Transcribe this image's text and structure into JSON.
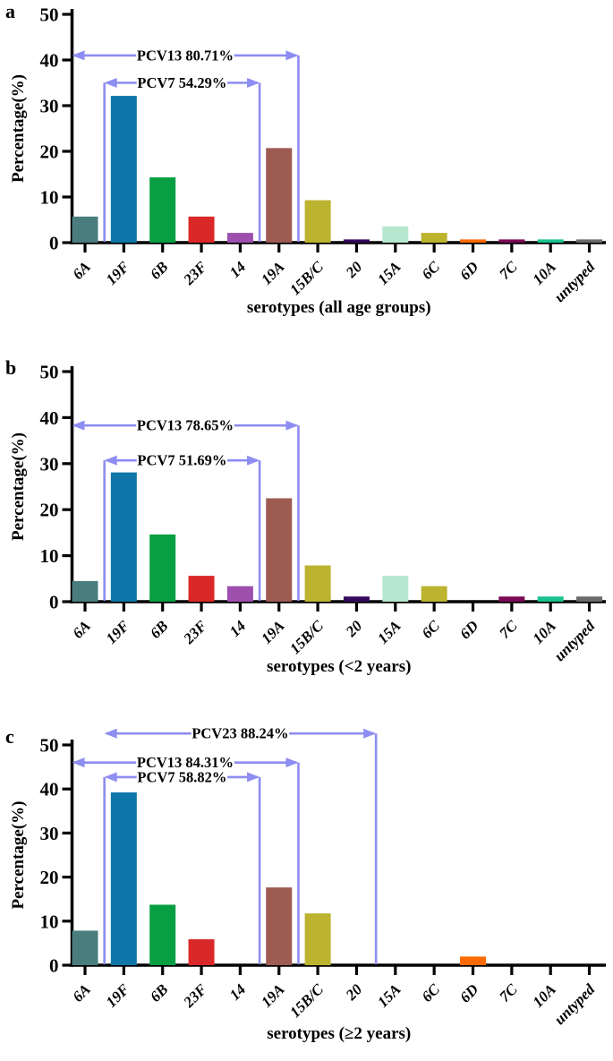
{
  "style": {
    "background": "#ffffff",
    "axis_color": "#000000",
    "text_color": "#000000",
    "arrow_color": "#8d8df2",
    "bar_colors": [
      "#4a7d7d",
      "#0e76a8",
      "#089e42",
      "#da2727",
      "#9d4fae",
      "#9e5b52",
      "#bcb32f",
      "#35095c",
      "#b6e7cf",
      "#bcb32f",
      "#fc6a03",
      "#7b0a55",
      "#19c28e",
      "#6b6b6b"
    ]
  },
  "chart_data": [
    {
      "type": "bar",
      "panel_letter": "a",
      "title": "",
      "xlabel": "serotypes (all age groups)",
      "ylabel": "Percentage(%)",
      "ylim": [
        0,
        50
      ],
      "yticks": [
        0,
        10,
        20,
        30,
        40,
        50
      ],
      "grid": false,
      "legend": "none",
      "categories": [
        "6A",
        "19F",
        "6B",
        "23F",
        "14",
        "19A",
        "15B/C",
        "20",
        "15A",
        "6C",
        "6D",
        "7C",
        "10A",
        "untyped"
      ],
      "values": [
        5.71,
        32.14,
        14.29,
        5.71,
        2.14,
        20.71,
        9.29,
        0.71,
        3.57,
        2.14,
        0.71,
        0.71,
        0.71,
        0.71
      ],
      "annotations": [
        {
          "label": "PCV13 80.71%",
          "y": 41.0,
          "from": "y-axis",
          "to": "right-of-19A",
          "drop_from": false,
          "drop_to": true
        },
        {
          "label": "PCV7 54.29%",
          "y": 35.0,
          "from": "left-of-19F",
          "to": "between-14-19A",
          "drop_from": true,
          "drop_to": true
        }
      ]
    },
    {
      "type": "bar",
      "panel_letter": "b",
      "title": "",
      "xlabel": "serotypes (<2 years)",
      "ylabel": "Percentage(%)",
      "ylim": [
        0,
        50
      ],
      "yticks": [
        0,
        10,
        20,
        30,
        40,
        50
      ],
      "grid": false,
      "legend": "none",
      "categories": [
        "6A",
        "19F",
        "6B",
        "23F",
        "14",
        "19A",
        "15B/C",
        "20",
        "15A",
        "6C",
        "6D",
        "7C",
        "10A",
        "untyped"
      ],
      "values": [
        4.49,
        28.09,
        14.61,
        5.62,
        3.37,
        22.47,
        7.87,
        1.12,
        5.62,
        3.37,
        0,
        1.12,
        1.12,
        1.12
      ],
      "annotations": [
        {
          "label": "PCV13 78.65%",
          "y": 38.3,
          "from": "y-axis",
          "to": "right-of-19A",
          "drop_from": false,
          "drop_to": true
        },
        {
          "label": "PCV7 51.69%",
          "y": 30.7,
          "from": "left-of-19F",
          "to": "between-14-19A",
          "drop_from": true,
          "drop_to": true
        }
      ]
    },
    {
      "type": "bar",
      "panel_letter": "c",
      "title": "",
      "xlabel": "serotypes (≥2 years)",
      "ylabel": "Percentage(%)",
      "ylim": [
        0,
        50
      ],
      "yticks": [
        0,
        10,
        20,
        30,
        40,
        50
      ],
      "grid": false,
      "legend": "none",
      "categories": [
        "6A",
        "19F",
        "6B",
        "23F",
        "14",
        "19A",
        "15B/C",
        "20",
        "15A",
        "6C",
        "6D",
        "7C",
        "10A",
        "untyped"
      ],
      "values": [
        7.84,
        39.22,
        13.73,
        5.88,
        0,
        17.65,
        11.76,
        0,
        0,
        0,
        1.96,
        0,
        0,
        0
      ],
      "annotations": [
        {
          "label": "PCV23 88.24%",
          "y": 52.6,
          "from": "left-of-19F",
          "to": "right-of-20",
          "drop_from": false,
          "drop_to": true
        },
        {
          "label": "PCV13 84.31%",
          "y": 46.0,
          "from": "y-axis",
          "to": "right-of-19A",
          "drop_from": false,
          "drop_to": true
        },
        {
          "label": "PCV7 58.82%",
          "y": 42.7,
          "from": "left-of-19F",
          "to": "between-14-19A",
          "drop_from": true,
          "drop_to": true
        }
      ]
    }
  ]
}
